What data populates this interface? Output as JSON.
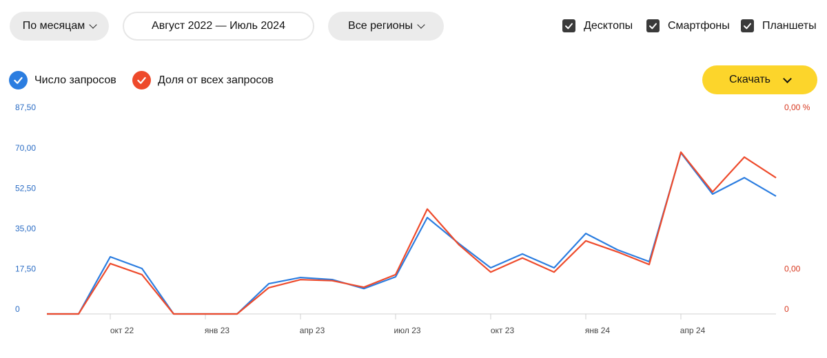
{
  "controls": {
    "period": "По месяцам",
    "range": "Август 2022 — Июль 2024",
    "region": "Все регионы",
    "devices": [
      {
        "label": "Десктопы",
        "checked": true
      },
      {
        "label": "Смартфоны",
        "checked": true
      },
      {
        "label": "Планшеты",
        "checked": true
      }
    ]
  },
  "download": "Скачать",
  "chart_data": {
    "type": "line",
    "categories": [
      null,
      null,
      "окт 22",
      null,
      null,
      "янв 23",
      null,
      null,
      "апр 23",
      null,
      null,
      "июл 23",
      null,
      null,
      "окт 23",
      null,
      null,
      "янв 24",
      null,
      null,
      "апр 24",
      null,
      null,
      null
    ],
    "series": [
      {
        "name": "Число запросов",
        "color": "#2b7de0",
        "values": [
          0,
          0,
          24.8,
          19.7,
          0,
          0,
          0,
          13.1,
          15.8,
          14.9,
          11.0,
          16.1,
          41.8,
          30.5,
          20.0,
          26.0,
          20.0,
          34.9,
          27.8,
          22.7,
          69.9,
          52.0,
          59.1,
          51.1
        ]
      },
      {
        "name": "Доля от всех запросов",
        "color": "#ee4a2b",
        "axis": "y2",
        "values": [
          0,
          0,
          0.001,
          0.00078,
          0,
          0,
          0,
          0.00052,
          0.00068,
          0.00066,
          0.00053,
          0.00078,
          0.00208,
          0.00137,
          0.00083,
          0.00111,
          0.00083,
          0.00145,
          0.00123,
          0.00098,
          0.00321,
          0.00242,
          0.00311,
          0.0027
        ]
      }
    ],
    "ylim": [
      0,
      87.5
    ],
    "yticks": [
      0,
      {
        "value": 17.5,
        "label": "17,50"
      },
      {
        "value": 35,
        "label": "35,00"
      },
      {
        "value": 52.5,
        "label": "52,50"
      },
      {
        "value": 70,
        "label": "70,00"
      },
      {
        "value": 87.5,
        "label": "87,50"
      }
    ],
    "y2lim": [
      0,
      0.004
    ],
    "y2ticks": [
      0,
      {
        "value": 0.0008,
        "label": "0,00"
      },
      {
        "value": 0.004,
        "label": "0,00 %"
      }
    ]
  }
}
